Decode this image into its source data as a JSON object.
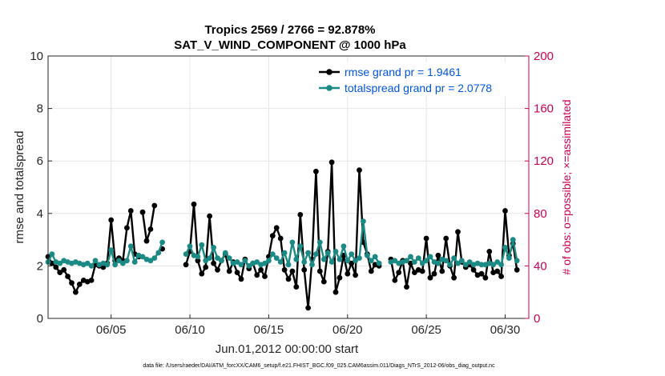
{
  "chart_data": {
    "type": "line",
    "title": "Tropics 2569 / 2766 = 92.878%",
    "subtitle": "SAT_V_WIND_COMPONENT @ 1000 hPa",
    "xlabel": "Jun.01,2012 00:00:00 start",
    "ylabel": "rmse and totalspread",
    "ylabel_right": "# of obs: o=possible; ×=assimilated",
    "footer": "data file: /Users/raeder/DAI/ATM_forcXX/CAM6_setup/f.e21.FHIST_BGC.f09_025.CAM6assim.011/Diags_NTrS_2012-06/obs_diag_output.nc",
    "xlim": [
      1,
      31.5
    ],
    "ylim": [
      0,
      10
    ],
    "ylim_right": [
      0,
      200
    ],
    "xticks": [
      5,
      10,
      15,
      20,
      25,
      30
    ],
    "xtick_labels": [
      "06/05",
      "06/10",
      "06/15",
      "06/20",
      "06/25",
      "06/30"
    ],
    "yticks": [
      0,
      2,
      4,
      6,
      8,
      10
    ],
    "ytick_labels": [
      "0",
      "2",
      "4",
      "6",
      "8",
      "10"
    ],
    "yticks_right": [
      0,
      40,
      80,
      120,
      160,
      200
    ],
    "ytick_labels_right": [
      "0",
      "40",
      "80",
      "120",
      "160",
      "200"
    ],
    "grid": true,
    "legend_position": "top-right",
    "series": [
      {
        "name": "rmse grand pr = 1.9461",
        "color": "#000000",
        "segments": [
          [
            [
              1.0,
              2.35
            ],
            [
              1.25,
              2.1
            ],
            [
              1.5,
              1.95
            ],
            [
              1.75,
              1.75
            ],
            [
              2.0,
              1.85
            ],
            [
              2.25,
              1.6
            ],
            [
              2.5,
              1.35
            ],
            [
              2.75,
              1.0
            ],
            [
              3.0,
              1.3
            ],
            [
              3.25,
              1.45
            ],
            [
              3.5,
              1.4
            ],
            [
              3.75,
              1.45
            ],
            [
              4.0,
              2.05
            ],
            [
              4.25,
              2.0
            ],
            [
              4.5,
              1.95
            ],
            [
              4.75,
              2.1
            ],
            [
              5.0,
              3.75
            ],
            [
              5.25,
              2.2
            ],
            [
              5.5,
              2.3
            ],
            [
              5.75,
              2.2
            ],
            [
              6.0,
              3.45
            ],
            [
              6.25,
              4.1
            ],
            [
              6.5,
              2.45
            ],
            [
              6.75,
              2.35
            ]
          ],
          [
            [
              7.0,
              4.05
            ],
            [
              7.25,
              2.95
            ],
            [
              7.5,
              3.4
            ],
            [
              7.75,
              4.3
            ]
          ],
          [
            [
              8.25,
              2.65
            ]
          ],
          [
            [
              9.75,
              2.05
            ],
            [
              10.0,
              2.55
            ],
            [
              10.25,
              4.35
            ],
            [
              10.5,
              2.2
            ],
            [
              10.75,
              1.7
            ],
            [
              11.0,
              1.95
            ],
            [
              11.25,
              3.9
            ],
            [
              11.5,
              2.1
            ],
            [
              11.75,
              1.85
            ],
            [
              12.0,
              2.2
            ],
            [
              12.25,
              2.45
            ],
            [
              12.5,
              1.8
            ],
            [
              12.75,
              2.15
            ],
            [
              13.0,
              1.75
            ],
            [
              13.25,
              1.5
            ],
            [
              13.5,
              2.25
            ],
            [
              13.75,
              1.9
            ],
            [
              14.0,
              2.1
            ],
            [
              14.25,
              1.65
            ],
            [
              14.5,
              1.85
            ],
            [
              14.75,
              1.6
            ],
            [
              15.0,
              2.35
            ],
            [
              15.25,
              3.15
            ],
            [
              15.5,
              3.45
            ],
            [
              15.75,
              3.05
            ],
            [
              16.0,
              1.85
            ],
            [
              16.25,
              1.5
            ],
            [
              16.5,
              1.8
            ],
            [
              16.75,
              1.2
            ],
            [
              17.0,
              3.95
            ],
            [
              17.25,
              1.85
            ],
            [
              17.5,
              0.4
            ],
            [
              17.75,
              2.25
            ],
            [
              18.0,
              5.6
            ],
            [
              18.25,
              1.8
            ],
            [
              18.5,
              1.4
            ],
            [
              18.75,
              2.55
            ],
            [
              19.0,
              5.95
            ],
            [
              19.25,
              1.0
            ],
            [
              19.5,
              1.55
            ],
            [
              19.75,
              2.4
            ],
            [
              20.0,
              1.7
            ],
            [
              20.25,
              2.1
            ],
            [
              20.5,
              1.65
            ],
            [
              20.75,
              5.65
            ],
            [
              21.0,
              2.9
            ],
            [
              21.25,
              2.45
            ],
            [
              21.5,
              1.8
            ],
            [
              21.75,
              2.05
            ],
            [
              22.0,
              2.0
            ]
          ],
          [
            [
              22.75,
              2.25
            ],
            [
              23.0,
              1.45
            ],
            [
              23.25,
              1.75
            ],
            [
              23.5,
              2.2
            ],
            [
              23.75,
              1.2
            ],
            [
              24.0,
              2.1
            ],
            [
              24.25,
              1.75
            ],
            [
              24.5,
              1.85
            ],
            [
              24.75,
              1.8
            ],
            [
              25.0,
              3.05
            ],
            [
              25.25,
              1.55
            ],
            [
              25.5,
              1.7
            ],
            [
              25.75,
              2.4
            ],
            [
              26.0,
              1.8
            ],
            [
              26.25,
              3.05
            ],
            [
              26.5,
              2.0
            ],
            [
              26.75,
              1.55
            ],
            [
              27.0,
              3.3
            ],
            [
              27.25,
              2.15
            ],
            [
              27.5,
              1.95
            ],
            [
              27.75,
              2.05
            ],
            [
              28.0,
              1.85
            ],
            [
              28.25,
              1.65
            ],
            [
              28.5,
              1.7
            ],
            [
              28.75,
              1.55
            ],
            [
              29.0,
              2.55
            ],
            [
              29.25,
              1.75
            ],
            [
              29.5,
              1.8
            ],
            [
              29.75,
              1.6
            ],
            [
              30.0,
              4.1
            ],
            [
              30.25,
              2.4
            ],
            [
              30.5,
              2.85
            ],
            [
              30.75,
              1.85
            ]
          ]
        ]
      },
      {
        "name": "totalspread grand pr = 2.0778",
        "color": "#1b8a84",
        "segments": [
          [
            [
              1.0,
              2.15
            ],
            [
              1.25,
              2.45
            ],
            [
              1.5,
              2.15
            ],
            [
              1.75,
              2.1
            ],
            [
              2.0,
              2.2
            ],
            [
              2.25,
              2.15
            ],
            [
              2.5,
              2.1
            ],
            [
              2.75,
              2.15
            ],
            [
              3.0,
              2.1
            ],
            [
              3.25,
              2.05
            ],
            [
              3.5,
              2.1
            ],
            [
              3.75,
              2.0
            ],
            [
              4.0,
              2.2
            ],
            [
              4.25,
              2.05
            ],
            [
              4.5,
              2.1
            ],
            [
              4.75,
              2.05
            ],
            [
              5.0,
              2.6
            ],
            [
              5.25,
              2.05
            ],
            [
              5.5,
              2.2
            ],
            [
              5.75,
              2.1
            ],
            [
              6.0,
              2.2
            ],
            [
              6.25,
              2.75
            ],
            [
              6.5,
              2.15
            ],
            [
              6.75,
              2.4
            ],
            [
              7.0,
              2.35
            ],
            [
              7.25,
              2.25
            ],
            [
              7.5,
              2.2
            ],
            [
              7.75,
              2.3
            ],
            [
              8.0,
              2.5
            ],
            [
              8.25,
              2.9
            ]
          ],
          [
            [
              9.75,
              2.45
            ],
            [
              10.0,
              2.75
            ],
            [
              10.25,
              2.4
            ],
            [
              10.5,
              2.35
            ],
            [
              10.75,
              2.8
            ],
            [
              11.0,
              2.2
            ],
            [
              11.25,
              2.3
            ],
            [
              11.5,
              2.7
            ],
            [
              11.75,
              2.3
            ],
            [
              12.0,
              2.2
            ],
            [
              12.25,
              2.5
            ],
            [
              12.5,
              2.3
            ],
            [
              12.75,
              2.1
            ],
            [
              13.0,
              2.15
            ],
            [
              13.25,
              2.05
            ],
            [
              13.5,
              2.2
            ],
            [
              13.75,
              2.0
            ],
            [
              14.0,
              2.1
            ],
            [
              14.25,
              2.15
            ],
            [
              14.5,
              2.05
            ],
            [
              14.75,
              2.1
            ],
            [
              15.0,
              2.2
            ],
            [
              15.25,
              2.45
            ],
            [
              15.5,
              2.3
            ],
            [
              15.75,
              2.15
            ],
            [
              16.0,
              2.5
            ],
            [
              16.25,
              2.05
            ],
            [
              16.5,
              2.9
            ],
            [
              16.75,
              2.25
            ],
            [
              17.0,
              2.75
            ],
            [
              17.25,
              2.15
            ],
            [
              17.5,
              2.5
            ],
            [
              17.75,
              2.05
            ],
            [
              18.0,
              2.45
            ],
            [
              18.25,
              2.9
            ],
            [
              18.5,
              2.25
            ],
            [
              18.75,
              2.5
            ],
            [
              19.0,
              2.15
            ],
            [
              19.25,
              2.55
            ],
            [
              19.5,
              2.25
            ],
            [
              19.75,
              2.75
            ],
            [
              20.0,
              2.2
            ],
            [
              20.25,
              2.45
            ],
            [
              20.5,
              2.2
            ],
            [
              20.75,
              2.3
            ],
            [
              21.0,
              3.7
            ],
            [
              21.25,
              2.4
            ],
            [
              21.5,
              2.2
            ],
            [
              21.75,
              2.35
            ],
            [
              22.0,
              2.1
            ]
          ],
          [
            [
              22.75,
              2.15
            ],
            [
              23.0,
              2.2
            ],
            [
              23.25,
              2.1
            ],
            [
              23.5,
              2.15
            ],
            [
              23.75,
              2.2
            ],
            [
              24.0,
              2.35
            ],
            [
              24.25,
              2.15
            ],
            [
              24.5,
              2.3
            ],
            [
              24.75,
              2.1
            ],
            [
              25.0,
              2.2
            ],
            [
              25.25,
              2.35
            ],
            [
              25.5,
              2.15
            ],
            [
              25.75,
              2.1
            ],
            [
              26.0,
              2.25
            ],
            [
              26.25,
              2.2
            ],
            [
              26.5,
              2.05
            ],
            [
              26.75,
              2.3
            ],
            [
              27.0,
              2.1
            ],
            [
              27.25,
              2.2
            ],
            [
              27.5,
              2.05
            ],
            [
              27.75,
              2.15
            ],
            [
              28.0,
              2.05
            ],
            [
              28.25,
              2.1
            ],
            [
              28.5,
              2.05
            ],
            [
              28.75,
              2.05
            ],
            [
              29.0,
              2.1
            ],
            [
              29.25,
              2.05
            ],
            [
              29.5,
              2.15
            ],
            [
              29.75,
              2.05
            ],
            [
              30.0,
              2.7
            ],
            [
              30.25,
              2.3
            ],
            [
              30.5,
              3.0
            ],
            [
              30.75,
              2.2
            ]
          ]
        ]
      }
    ]
  }
}
